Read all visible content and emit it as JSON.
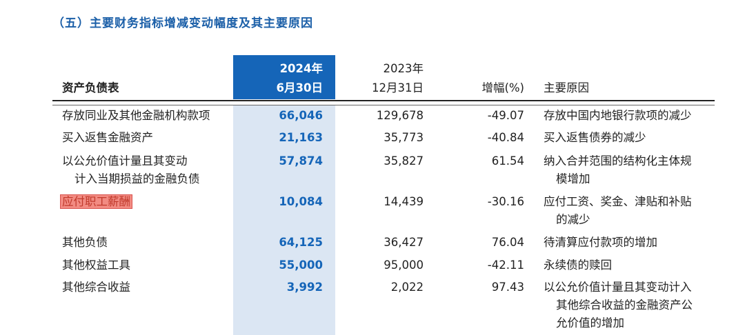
{
  "title": "（五）主要财务指标增减变动幅度及其主要原因",
  "header": {
    "sheet": "资产负债表",
    "col2024_line1": "2024年",
    "col2024_line2": "6月30日",
    "col2023_line1": "2023年",
    "col2023_line2": "12月31日",
    "change": "增幅(%)",
    "reason": "主要原因"
  },
  "rows": [
    {
      "label": [
        "存放同业及其他金融机构款项"
      ],
      "v2024": "66,046",
      "v2023": "129,678",
      "change": "-49.07",
      "reason": [
        "存放中国内地银行款项的减少"
      ]
    },
    {
      "label": [
        "买入返售金融资产"
      ],
      "v2024": "21,163",
      "v2023": "35,773",
      "change": "-40.84",
      "reason": [
        "买入返售债券的减少"
      ]
    },
    {
      "label": [
        "以公允价值计量且其变动",
        "计入当期损益的金融负债"
      ],
      "v2024": "57,874",
      "v2023": "35,827",
      "change": "61.54",
      "reason": [
        "纳入合并范围的结构化主体规",
        "模增加"
      ]
    },
    {
      "label": [
        "应付职工薪酬"
      ],
      "v2024": "10,084",
      "v2023": "14,439",
      "change": "-30.16",
      "reason": [
        "应付工资、奖金、津贴和补贴",
        "的减少"
      ],
      "highlighted": true
    },
    {
      "label": [
        "其他负债"
      ],
      "v2024": "64,125",
      "v2023": "36,427",
      "change": "76.04",
      "reason": [
        "待清算应付款项的增加"
      ]
    },
    {
      "label": [
        "其他权益工具"
      ],
      "v2024": "55,000",
      "v2023": "95,000",
      "change": "-42.11",
      "reason": [
        "永续债的赎回"
      ]
    },
    {
      "label": [
        "其他综合收益"
      ],
      "v2024": "3,992",
      "v2023": "2,022",
      "change": "97.43",
      "reason": [
        "以公允价值计量且其变动计入",
        "其他综合收益的金融资产公",
        "允价值的增加"
      ]
    }
  ],
  "colors": {
    "accent": "#1565b8",
    "band": "#dbe6f3",
    "title": "#1b5fa8",
    "highlight": "#f28b82"
  }
}
